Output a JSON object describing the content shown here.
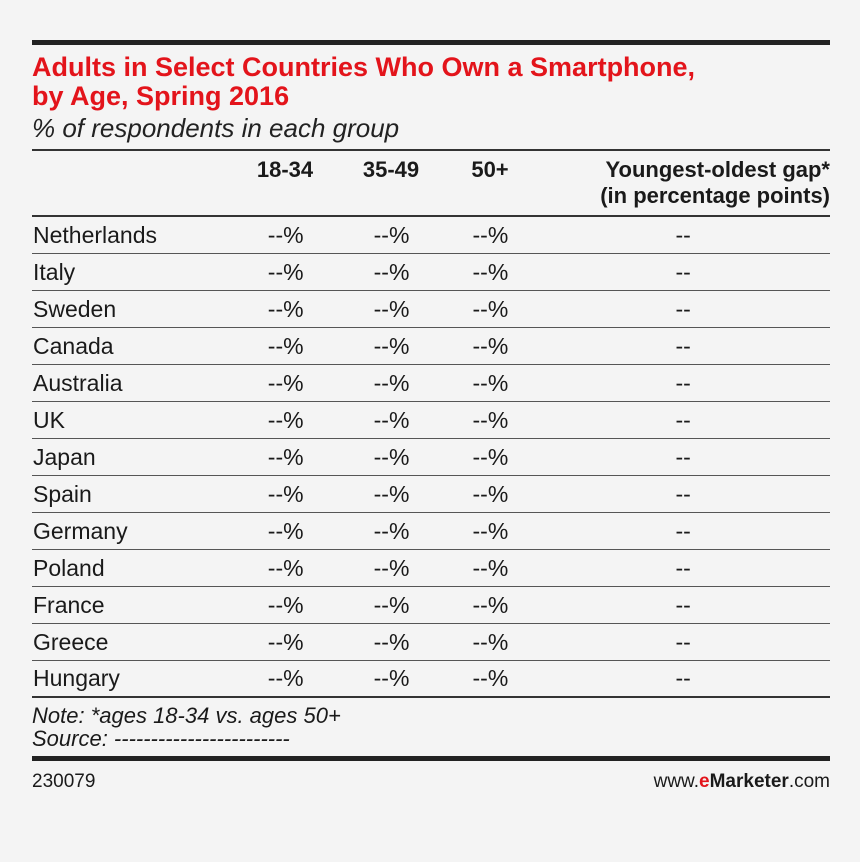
{
  "title_line1": "Adults in Select Countries Who Own a Smartphone,",
  "title_line2": "by Age, Spring 2016",
  "subtitle": "% of respondents in each group",
  "chart_data": {
    "type": "table",
    "columns": [
      "",
      "18-34",
      "35-49",
      "50+",
      "Youngest-oldest gap*",
      "(in percentage points)"
    ],
    "header": {
      "col1": "18-34",
      "col2": "35-49",
      "col3": "50+",
      "col4_line1": "Youngest-oldest gap*",
      "col4_line2": "(in percentage points)"
    },
    "rows": [
      {
        "country": "Netherlands",
        "a": "--%",
        "b": "--%",
        "c": "--%",
        "gap": "--"
      },
      {
        "country": "Italy",
        "a": "--%",
        "b": "--%",
        "c": "--%",
        "gap": "--"
      },
      {
        "country": "Sweden",
        "a": "--%",
        "b": "--%",
        "c": "--%",
        "gap": "--"
      },
      {
        "country": "Canada",
        "a": "--%",
        "b": "--%",
        "c": "--%",
        "gap": "--"
      },
      {
        "country": "Australia",
        "a": "--%",
        "b": "--%",
        "c": "--%",
        "gap": "--"
      },
      {
        "country": "UK",
        "a": "--%",
        "b": "--%",
        "c": "--%",
        "gap": "--"
      },
      {
        "country": "Japan",
        "a": "--%",
        "b": "--%",
        "c": "--%",
        "gap": "--"
      },
      {
        "country": "Spain",
        "a": "--%",
        "b": "--%",
        "c": "--%",
        "gap": "--"
      },
      {
        "country": "Germany",
        "a": "--%",
        "b": "--%",
        "c": "--%",
        "gap": "--"
      },
      {
        "country": "Poland",
        "a": "--%",
        "b": "--%",
        "c": "--%",
        "gap": "--"
      },
      {
        "country": "France",
        "a": "--%",
        "b": "--%",
        "c": "--%",
        "gap": "--"
      },
      {
        "country": "Greece",
        "a": "--%",
        "b": "--%",
        "c": "--%",
        "gap": "--"
      },
      {
        "country": "Hungary",
        "a": "--%",
        "b": "--%",
        "c": "--%",
        "gap": "--"
      }
    ]
  },
  "note": "Note: *ages 18-34 vs. ages 50+",
  "source": "Source: ------------------------",
  "footer": {
    "id": "230079",
    "brand_prefix": "www.",
    "brand_e": "e",
    "brand_name": "Marketer",
    "brand_suffix": ".com"
  },
  "colors": {
    "accent": "#e3141b",
    "text": "#1a1a1a",
    "background": "#f4f4f4"
  }
}
